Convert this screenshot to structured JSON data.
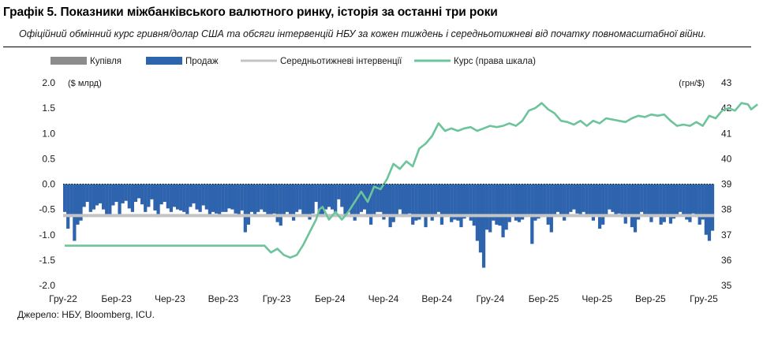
{
  "header": {
    "title": "Графік 5. Показники міжбанківського валютного ринку, історія за останні три роки",
    "subtitle": "Офіційний обмінний курс гривня/долар США та обсяги інтервенцій НБУ за кожен тиждень і середньотижневі від початку повномасштабної війни."
  },
  "source": "Джерело: НБУ, Bloomberg, ICU.",
  "colors": {
    "buy": "#8c8c8c",
    "sell": "#2e63ad",
    "average": "#c4c4c4",
    "rate": "#6cc49a"
  },
  "chart_data": {
    "type": "bar",
    "left_axis": {
      "unit": "($ млрд)",
      "ylim": [
        -2.0,
        2.0
      ],
      "ticks": [
        "2.0",
        "1.5",
        "1.0",
        "0.5",
        "0.0",
        "-0.5",
        "-1.0",
        "-1.5",
        "-2.0"
      ]
    },
    "right_axis": {
      "unit": "(грн/$)",
      "ylim": [
        35,
        43
      ],
      "ticks": [
        "43",
        "42",
        "41",
        "40",
        "39",
        "38",
        "37",
        "36",
        "35"
      ]
    },
    "x_tick_labels": [
      "Гру-22",
      "Бер-23",
      "Чер-23",
      "Вер-23",
      "Гру-23",
      "Бер-24",
      "Чер-24",
      "Вер-24",
      "Гру-24",
      "Бер-25",
      "Чер-25",
      "Вер-25",
      "Гру-25"
    ],
    "legend": [
      {
        "key": "buy",
        "label": "Купівля",
        "style": "bar-gray"
      },
      {
        "key": "sell",
        "label": "Продаж",
        "style": "bar-blue"
      },
      {
        "key": "average",
        "label": "Середньотижневі інтервенції",
        "style": "line-gray"
      },
      {
        "key": "rate",
        "label": "Курс (права шкала)",
        "style": "line-green"
      }
    ],
    "average_intervention": -0.62,
    "weekly_sales": [
      -0.55,
      -0.88,
      -0.65,
      -1.12,
      -0.8,
      -0.72,
      -0.45,
      -0.35,
      -0.55,
      -0.5,
      -0.42,
      -0.38,
      -0.5,
      -0.6,
      -0.62,
      -0.42,
      -0.35,
      -0.6,
      -0.38,
      -0.33,
      -0.48,
      -0.55,
      -0.35,
      -0.28,
      -0.4,
      -0.55,
      -0.45,
      -0.3,
      -0.52,
      -0.65,
      -0.4,
      -0.35,
      -0.48,
      -0.55,
      -0.45,
      -0.5,
      -0.52,
      -0.55,
      -0.6,
      -0.45,
      -0.38,
      -0.5,
      -0.55,
      -0.42,
      -0.5,
      -0.6,
      -0.55,
      -0.58,
      -0.62,
      -0.55,
      -0.55,
      -0.48,
      -0.5,
      -0.58,
      -0.6,
      -0.52,
      -0.95,
      -0.8,
      -0.55,
      -0.6,
      -0.55,
      -0.5,
      -0.55,
      -0.65,
      -0.62,
      -0.58,
      -0.75,
      -0.82,
      -0.6,
      -0.55,
      -0.65,
      -0.72,
      -0.55,
      -0.5,
      -0.62,
      -0.6,
      -0.7,
      -0.58,
      -0.35,
      -0.6,
      -0.65,
      -0.5,
      -0.45,
      -0.5,
      -0.55,
      -0.3,
      -0.45,
      -0.6,
      -0.55,
      -0.65,
      -0.72,
      -0.6,
      -0.55,
      -0.5,
      -0.65,
      -0.8,
      -0.6,
      -0.55,
      -0.55,
      -0.7,
      -0.62,
      -0.85,
      -0.75,
      -0.6,
      -0.5,
      -0.65,
      -0.62,
      -0.58,
      -0.8,
      -0.72,
      -0.7,
      -0.65,
      -0.85,
      -0.6,
      -0.72,
      -0.6,
      -0.55,
      -0.8,
      -0.65,
      -0.62,
      -0.75,
      -0.7,
      -0.72,
      -0.85,
      -0.68,
      -0.6,
      -0.72,
      -0.82,
      -1.12,
      -1.35,
      -1.65,
      -0.9,
      -0.95,
      -0.72,
      -0.8,
      -0.82,
      -1.05,
      -0.9,
      -0.75,
      -0.6,
      -0.72,
      -0.75,
      -0.7,
      -0.65,
      -0.6,
      -1.18,
      -0.72,
      -0.68,
      -0.65,
      -0.62,
      -0.8,
      -0.95,
      -0.6,
      -0.55,
      -0.62,
      -0.72,
      -0.6,
      -0.55,
      -0.5,
      -0.58,
      -0.62,
      -0.55,
      -0.65,
      -0.6,
      -0.72,
      -0.62,
      -0.88,
      -0.8,
      -0.6,
      -0.5,
      -0.55,
      -0.6,
      -0.58,
      -0.65,
      -0.78,
      -0.62,
      -0.85,
      -0.95,
      -0.7,
      -0.55,
      -0.6,
      -0.62,
      -0.75,
      -0.65,
      -0.6,
      -0.8,
      -0.75,
      -0.65,
      -0.78,
      -0.68,
      -0.6,
      -0.55,
      -0.62,
      -0.7,
      -0.75,
      -0.58,
      -0.65,
      -0.8,
      -0.7,
      -1.0,
      -1.12,
      -0.92
    ],
    "exchange_rate": [
      {
        "x": 0,
        "y": 36.57
      },
      {
        "x": 62,
        "y": 36.57
      },
      {
        "x": 64,
        "y": 36.3
      },
      {
        "x": 66,
        "y": 36.45
      },
      {
        "x": 68,
        "y": 36.2
      },
      {
        "x": 70,
        "y": 36.1
      },
      {
        "x": 72,
        "y": 36.2
      },
      {
        "x": 74,
        "y": 36.6
      },
      {
        "x": 76,
        "y": 37.1
      },
      {
        "x": 78,
        "y": 37.6
      },
      {
        "x": 79,
        "y": 38.0
      },
      {
        "x": 80,
        "y": 38.1
      },
      {
        "x": 82,
        "y": 37.6
      },
      {
        "x": 84,
        "y": 37.9
      },
      {
        "x": 86,
        "y": 37.6
      },
      {
        "x": 88,
        "y": 37.9
      },
      {
        "x": 90,
        "y": 38.3
      },
      {
        "x": 92,
        "y": 38.7
      },
      {
        "x": 94,
        "y": 38.3
      },
      {
        "x": 96,
        "y": 38.9
      },
      {
        "x": 98,
        "y": 38.8
      },
      {
        "x": 100,
        "y": 39.2
      },
      {
        "x": 102,
        "y": 39.8
      },
      {
        "x": 104,
        "y": 39.6
      },
      {
        "x": 106,
        "y": 39.9
      },
      {
        "x": 108,
        "y": 39.7
      },
      {
        "x": 110,
        "y": 40.4
      },
      {
        "x": 112,
        "y": 40.6
      },
      {
        "x": 114,
        "y": 40.9
      },
      {
        "x": 116,
        "y": 41.4
      },
      {
        "x": 118,
        "y": 41.1
      },
      {
        "x": 120,
        "y": 41.2
      },
      {
        "x": 122,
        "y": 41.1
      },
      {
        "x": 124,
        "y": 41.2
      },
      {
        "x": 126,
        "y": 41.25
      },
      {
        "x": 128,
        "y": 41.1
      },
      {
        "x": 130,
        "y": 41.2
      },
      {
        "x": 132,
        "y": 41.3
      },
      {
        "x": 134,
        "y": 41.25
      },
      {
        "x": 136,
        "y": 41.3
      },
      {
        "x": 138,
        "y": 41.4
      },
      {
        "x": 140,
        "y": 41.3
      },
      {
        "x": 142,
        "y": 41.5
      },
      {
        "x": 144,
        "y": 41.9
      },
      {
        "x": 146,
        "y": 42.0
      },
      {
        "x": 148,
        "y": 42.2
      },
      {
        "x": 150,
        "y": 41.95
      },
      {
        "x": 152,
        "y": 41.8
      },
      {
        "x": 154,
        "y": 41.5
      },
      {
        "x": 156,
        "y": 41.45
      },
      {
        "x": 158,
        "y": 41.35
      },
      {
        "x": 160,
        "y": 41.5
      },
      {
        "x": 162,
        "y": 41.3
      },
      {
        "x": 164,
        "y": 41.5
      },
      {
        "x": 166,
        "y": 41.4
      },
      {
        "x": 168,
        "y": 41.6
      },
      {
        "x": 170,
        "y": 41.55
      },
      {
        "x": 172,
        "y": 41.5
      },
      {
        "x": 174,
        "y": 41.45
      },
      {
        "x": 176,
        "y": 41.6
      },
      {
        "x": 178,
        "y": 41.7
      },
      {
        "x": 180,
        "y": 41.65
      },
      {
        "x": 182,
        "y": 41.75
      },
      {
        "x": 184,
        "y": 41.7
      },
      {
        "x": 186,
        "y": 41.75
      },
      {
        "x": 188,
        "y": 41.5
      },
      {
        "x": 190,
        "y": 41.3
      },
      {
        "x": 192,
        "y": 41.35
      },
      {
        "x": 194,
        "y": 41.3
      },
      {
        "x": 196,
        "y": 41.45
      },
      {
        "x": 198,
        "y": 41.3
      },
      {
        "x": 200,
        "y": 41.7
      },
      {
        "x": 202,
        "y": 41.6
      },
      {
        "x": 204,
        "y": 41.9
      },
      {
        "x": 206,
        "y": 42.0
      },
      {
        "x": 208,
        "y": 41.9
      },
      {
        "x": 210,
        "y": 42.2
      },
      {
        "x": 212,
        "y": 42.15
      },
      {
        "x": 213,
        "y": 41.95
      },
      {
        "x": 214,
        "y": 42.05
      },
      {
        "x": 215,
        "y": 42.15
      }
    ]
  }
}
